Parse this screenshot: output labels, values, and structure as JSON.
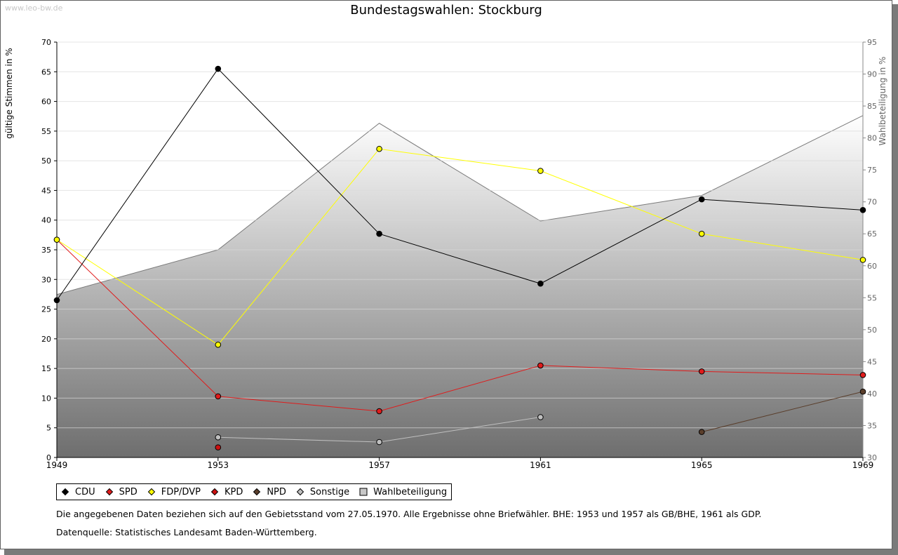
{
  "watermark": "www.leo-bw.de",
  "chart_data": {
    "type": "line",
    "title": "Bundestagswahlen: Stockburg",
    "x": [
      1949,
      1953,
      1957,
      1961,
      1965,
      1969
    ],
    "ylabel_left": "gültige Stimmen in %",
    "ylabel_right": "Wahlbeteiligung in %",
    "ylim_left": [
      0,
      70
    ],
    "yticks_left": [
      0,
      5,
      10,
      15,
      20,
      25,
      30,
      35,
      40,
      45,
      50,
      55,
      60,
      65,
      70
    ],
    "ylim_right": [
      30,
      95
    ],
    "yticks_right": [
      30,
      35,
      40,
      45,
      50,
      55,
      60,
      65,
      70,
      75,
      80,
      85,
      90,
      95
    ],
    "grid": true,
    "legend_position": "bottom",
    "series": [
      {
        "name": "CDU",
        "color": "#000000",
        "axis": "left",
        "values": [
          26.5,
          65.5,
          37.7,
          29.3,
          43.5,
          41.7
        ]
      },
      {
        "name": "SPD",
        "color": "#e01b1b",
        "axis": "left",
        "values": [
          36.7,
          10.3,
          7.8,
          15.5,
          14.5,
          13.9
        ]
      },
      {
        "name": "FDP/DVP",
        "color": "#ffff00",
        "axis": "left",
        "values": [
          36.7,
          19.0,
          52.0,
          48.3,
          37.7,
          33.3
        ]
      },
      {
        "name": "KPD",
        "color": "#cc1111",
        "axis": "left",
        "values": [
          null,
          1.7,
          null,
          null,
          null,
          null
        ]
      },
      {
        "name": "NPD",
        "color": "#5a3e2b",
        "axis": "left",
        "values": [
          null,
          null,
          null,
          null,
          4.3,
          11.1
        ]
      },
      {
        "name": "Sonstige",
        "color": "#c0c0c0",
        "axis": "left",
        "values": [
          null,
          3.4,
          2.6,
          6.8,
          null,
          null
        ]
      },
      {
        "name": "Wahlbeteiligung",
        "color": "#8c8c8c",
        "axis": "right",
        "type": "area",
        "values": [
          55.5,
          62.5,
          82.3,
          67.0,
          71.0,
          83.5
        ]
      }
    ]
  },
  "legend": {
    "items": [
      {
        "label": "CDU",
        "marker": "diamond",
        "color": "#000000"
      },
      {
        "label": "SPD",
        "marker": "diamond",
        "color": "#e01b1b"
      },
      {
        "label": "FDP/DVP",
        "marker": "diamond",
        "color": "#ffff00"
      },
      {
        "label": "KPD",
        "marker": "diamond",
        "color": "#cc1111"
      },
      {
        "label": "NPD",
        "marker": "diamond",
        "color": "#5a3e2b"
      },
      {
        "label": "Sonstige",
        "marker": "diamond",
        "color": "#c0c0c0"
      },
      {
        "label": "Wahlbeteiligung",
        "marker": "square",
        "color": "#c8c8c8"
      }
    ]
  },
  "notes": {
    "line1": "Die angegebenen Daten beziehen sich auf den Gebietsstand vom 27.05.1970. Alle Ergebnisse ohne Briefwähler. BHE: 1953 und 1957 als GB/BHE, 1961 als GDP.",
    "line2": "Datenquelle: Statistisches Landesamt Baden-Württemberg."
  }
}
